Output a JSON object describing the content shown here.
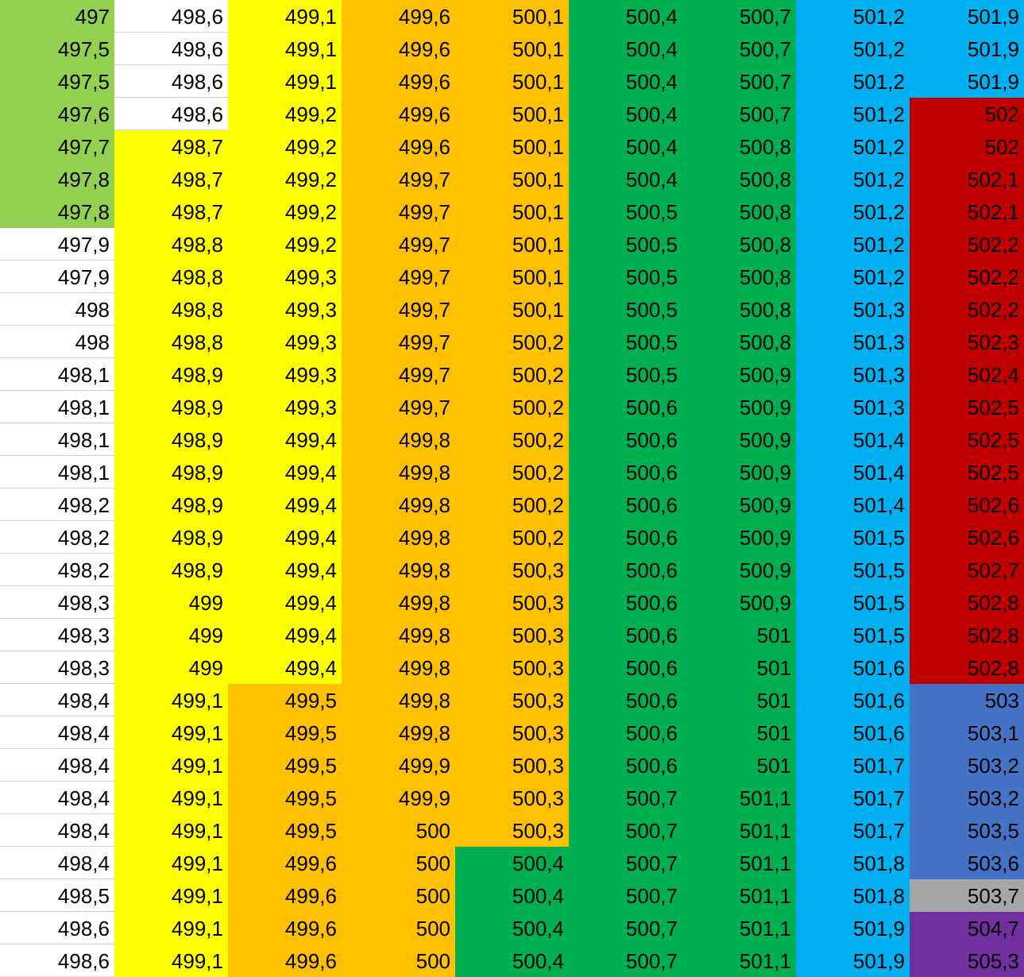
{
  "colors": {
    "white": "#ffffff",
    "lightgreen": "#92d050",
    "yellow": "#ffff00",
    "orange": "#ffc000",
    "green": "#00b050",
    "blue": "#00b0f0",
    "red": "#c00000",
    "steelblue": "#4472c4",
    "gray": "#a6a6a6",
    "purple": "#7030a0"
  },
  "columns": [
    {
      "values": [
        "497",
        "497,5",
        "497,5",
        "497,6",
        "497,7",
        "497,8",
        "497,8",
        "497,9",
        "497,9",
        "498",
        "498",
        "498,1",
        "498,1",
        "498,1",
        "498,1",
        "498,2",
        "498,2",
        "498,2",
        "498,3",
        "498,3",
        "498,3",
        "498,4",
        "498,4",
        "498,4",
        "498,4",
        "498,4",
        "498,4",
        "498,5",
        "498,6",
        "498,6"
      ],
      "fills": [
        "lightgreen",
        "lightgreen",
        "lightgreen",
        "lightgreen",
        "lightgreen",
        "lightgreen",
        "lightgreen",
        "white",
        "white",
        "white",
        "white",
        "white",
        "white",
        "white",
        "white",
        "white",
        "white",
        "white",
        "white",
        "white",
        "white",
        "white",
        "white",
        "white",
        "white",
        "white",
        "white",
        "white",
        "white",
        "white"
      ]
    },
    {
      "values": [
        "498,6",
        "498,6",
        "498,6",
        "498,6",
        "498,7",
        "498,7",
        "498,7",
        "498,8",
        "498,8",
        "498,8",
        "498,8",
        "498,9",
        "498,9",
        "498,9",
        "498,9",
        "498,9",
        "498,9",
        "498,9",
        "499",
        "499",
        "499",
        "499,1",
        "499,1",
        "499,1",
        "499,1",
        "499,1",
        "499,1",
        "499,1",
        "499,1",
        "499,1"
      ],
      "fills": [
        "white",
        "white",
        "white",
        "white",
        "yellow",
        "yellow",
        "yellow",
        "yellow",
        "yellow",
        "yellow",
        "yellow",
        "yellow",
        "yellow",
        "yellow",
        "yellow",
        "yellow",
        "yellow",
        "yellow",
        "yellow",
        "yellow",
        "yellow",
        "yellow",
        "yellow",
        "yellow",
        "yellow",
        "yellow",
        "yellow",
        "yellow",
        "yellow",
        "yellow"
      ]
    },
    {
      "values": [
        "499,1",
        "499,1",
        "499,1",
        "499,2",
        "499,2",
        "499,2",
        "499,2",
        "499,2",
        "499,3",
        "499,3",
        "499,3",
        "499,3",
        "499,3",
        "499,4",
        "499,4",
        "499,4",
        "499,4",
        "499,4",
        "499,4",
        "499,4",
        "499,4",
        "499,5",
        "499,5",
        "499,5",
        "499,5",
        "499,5",
        "499,6",
        "499,6",
        "499,6",
        "499,6"
      ],
      "fills": [
        "yellow",
        "yellow",
        "yellow",
        "yellow",
        "yellow",
        "yellow",
        "yellow",
        "yellow",
        "yellow",
        "yellow",
        "yellow",
        "yellow",
        "yellow",
        "yellow",
        "yellow",
        "yellow",
        "yellow",
        "yellow",
        "yellow",
        "yellow",
        "yellow",
        "orange",
        "orange",
        "orange",
        "orange",
        "orange",
        "orange",
        "orange",
        "orange",
        "orange"
      ]
    },
    {
      "values": [
        "499,6",
        "499,6",
        "499,6",
        "499,6",
        "499,6",
        "499,7",
        "499,7",
        "499,7",
        "499,7",
        "499,7",
        "499,7",
        "499,7",
        "499,7",
        "499,8",
        "499,8",
        "499,8",
        "499,8",
        "499,8",
        "499,8",
        "499,8",
        "499,8",
        "499,8",
        "499,8",
        "499,9",
        "499,9",
        "500",
        "500",
        "500",
        "500",
        "500"
      ],
      "fills": [
        "orange",
        "orange",
        "orange",
        "orange",
        "orange",
        "orange",
        "orange",
        "orange",
        "orange",
        "orange",
        "orange",
        "orange",
        "orange",
        "orange",
        "orange",
        "orange",
        "orange",
        "orange",
        "orange",
        "orange",
        "orange",
        "orange",
        "orange",
        "orange",
        "orange",
        "orange",
        "orange",
        "orange",
        "orange",
        "orange"
      ]
    },
    {
      "values": [
        "500,1",
        "500,1",
        "500,1",
        "500,1",
        "500,1",
        "500,1",
        "500,1",
        "500,1",
        "500,1",
        "500,1",
        "500,2",
        "500,2",
        "500,2",
        "500,2",
        "500,2",
        "500,2",
        "500,2",
        "500,3",
        "500,3",
        "500,3",
        "500,3",
        "500,3",
        "500,3",
        "500,3",
        "500,3",
        "500,3",
        "500,4",
        "500,4",
        "500,4",
        "500,4"
      ],
      "fills": [
        "orange",
        "orange",
        "orange",
        "orange",
        "orange",
        "orange",
        "orange",
        "orange",
        "orange",
        "orange",
        "orange",
        "orange",
        "orange",
        "orange",
        "orange",
        "orange",
        "orange",
        "orange",
        "orange",
        "orange",
        "orange",
        "orange",
        "orange",
        "orange",
        "orange",
        "orange",
        "green",
        "green",
        "green",
        "green"
      ]
    },
    {
      "values": [
        "500,4",
        "500,4",
        "500,4",
        "500,4",
        "500,4",
        "500,4",
        "500,5",
        "500,5",
        "500,5",
        "500,5",
        "500,5",
        "500,5",
        "500,6",
        "500,6",
        "500,6",
        "500,6",
        "500,6",
        "500,6",
        "500,6",
        "500,6",
        "500,6",
        "500,6",
        "500,6",
        "500,6",
        "500,7",
        "500,7",
        "500,7",
        "500,7",
        "500,7",
        "500,7"
      ],
      "fills": [
        "green",
        "green",
        "green",
        "green",
        "green",
        "green",
        "green",
        "green",
        "green",
        "green",
        "green",
        "green",
        "green",
        "green",
        "green",
        "green",
        "green",
        "green",
        "green",
        "green",
        "green",
        "green",
        "green",
        "green",
        "green",
        "green",
        "green",
        "green",
        "green",
        "green"
      ]
    },
    {
      "values": [
        "500,7",
        "500,7",
        "500,7",
        "500,7",
        "500,8",
        "500,8",
        "500,8",
        "500,8",
        "500,8",
        "500,8",
        "500,8",
        "500,9",
        "500,9",
        "500,9",
        "500,9",
        "500,9",
        "500,9",
        "500,9",
        "500,9",
        "501",
        "501",
        "501",
        "501",
        "501",
        "501,1",
        "501,1",
        "501,1",
        "501,1",
        "501,1",
        "501,1"
      ],
      "fills": [
        "green",
        "green",
        "green",
        "green",
        "green",
        "green",
        "green",
        "green",
        "green",
        "green",
        "green",
        "green",
        "green",
        "green",
        "green",
        "green",
        "green",
        "green",
        "green",
        "green",
        "green",
        "green",
        "green",
        "green",
        "green",
        "green",
        "green",
        "green",
        "green",
        "green"
      ]
    },
    {
      "values": [
        "501,2",
        "501,2",
        "501,2",
        "501,2",
        "501,2",
        "501,2",
        "501,2",
        "501,2",
        "501,2",
        "501,3",
        "501,3",
        "501,3",
        "501,3",
        "501,4",
        "501,4",
        "501,4",
        "501,5",
        "501,5",
        "501,5",
        "501,5",
        "501,6",
        "501,6",
        "501,6",
        "501,7",
        "501,7",
        "501,7",
        "501,8",
        "501,8",
        "501,9",
        "501,9"
      ],
      "fills": [
        "blue",
        "blue",
        "blue",
        "blue",
        "blue",
        "blue",
        "blue",
        "blue",
        "blue",
        "blue",
        "blue",
        "blue",
        "blue",
        "blue",
        "blue",
        "blue",
        "blue",
        "blue",
        "blue",
        "blue",
        "blue",
        "blue",
        "blue",
        "blue",
        "blue",
        "blue",
        "blue",
        "blue",
        "blue",
        "blue"
      ]
    },
    {
      "values": [
        "501,9",
        "501,9",
        "501,9",
        "502",
        "502",
        "502,1",
        "502,1",
        "502,2",
        "502,2",
        "502,2",
        "502,3",
        "502,4",
        "502,5",
        "502,5",
        "502,5",
        "502,6",
        "502,6",
        "502,7",
        "502,8",
        "502,8",
        "502,8",
        "503",
        "503,1",
        "503,2",
        "503,2",
        "503,5",
        "503,6",
        "503,7",
        "504,7",
        "505,3"
      ],
      "fills": [
        "blue",
        "blue",
        "blue",
        "red",
        "red",
        "red",
        "red",
        "red",
        "red",
        "red",
        "red",
        "red",
        "red",
        "red",
        "red",
        "red",
        "red",
        "red",
        "red",
        "red",
        "red",
        "steelblue",
        "steelblue",
        "steelblue",
        "steelblue",
        "steelblue",
        "steelblue",
        "gray",
        "purple",
        "purple"
      ]
    }
  ]
}
